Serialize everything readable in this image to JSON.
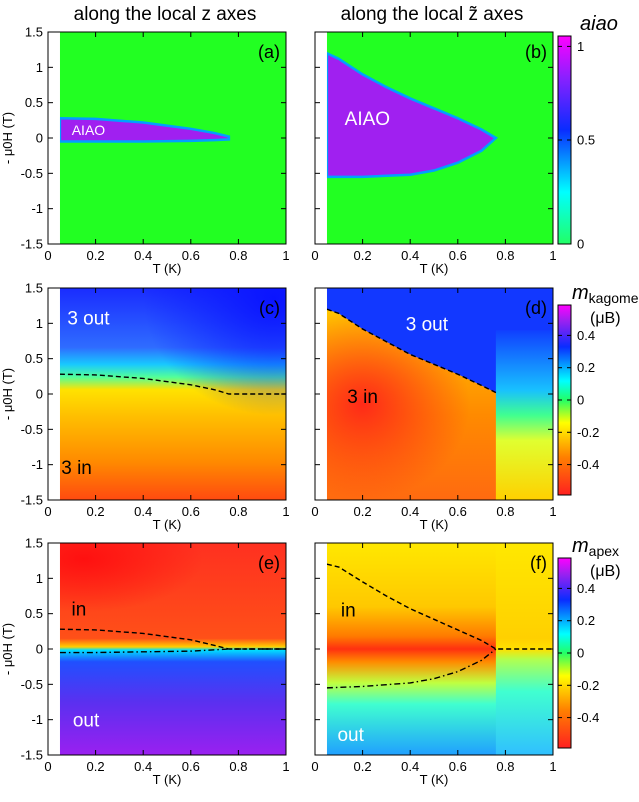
{
  "headers": {
    "left": "along the local z axes",
    "right": "along the local z̃ axes"
  },
  "colorbars": [
    {
      "title": "aiao",
      "unit": "",
      "ticks": [
        "1",
        "0.5",
        "0"
      ]
    },
    {
      "title": "m",
      "title_sub": "kagome",
      "unit": "(μB)",
      "ticks": [
        "0.4",
        "0.2",
        "0",
        "-0.2",
        "-0.4"
      ]
    },
    {
      "title": "m",
      "title_sub": "apex",
      "unit": "(μB)",
      "ticks": [
        "0.4",
        "0.2",
        "0",
        "-0.2",
        "-0.4"
      ]
    }
  ],
  "colors": {
    "aiao_on": "#a020f0",
    "aiao_off": "#22ff22",
    "boundary": "#0000ff",
    "scale": [
      "#ff2020",
      "#ff8000",
      "#ffff00",
      "#00ff80",
      "#00ffff",
      "#0000ff",
      "#ff00ff"
    ]
  },
  "chart_data": [
    {
      "panel": "(a)",
      "type": "heatmap",
      "xlabel": "T (K)",
      "ylabel": "- μ0H (T)",
      "xlim": [
        0,
        1
      ],
      "ylim": [
        -1.5,
        1.5
      ],
      "xticks": [
        "0",
        "0.2",
        "0.4",
        "0.6",
        "0.8",
        "1"
      ],
      "yticks": [
        "1.5",
        "1",
        "0.5",
        "0",
        "-0.5",
        "-1",
        "-1.5"
      ],
      "background": "aiao = 0",
      "regions": [
        {
          "label": "AIAO",
          "value": 1,
          "upper": {
            "x": [
              0.05,
              0.2,
              0.4,
              0.6,
              0.7,
              0.76
            ],
            "y": [
              0.28,
              0.27,
              0.22,
              0.13,
              0.07,
              0.02
            ]
          },
          "lower": {
            "x": [
              0.05,
              0.2,
              0.4,
              0.6,
              0.7,
              0.76
            ],
            "y": [
              -0.05,
              -0.05,
              -0.05,
              -0.04,
              -0.03,
              -0.02
            ]
          }
        }
      ]
    },
    {
      "panel": "(b)",
      "type": "heatmap",
      "xlabel": "T (K)",
      "ylabel": "",
      "xlim": [
        0,
        1
      ],
      "ylim": [
        -1.5,
        1.5
      ],
      "xticks": [
        "0",
        "0.2",
        "0.4",
        "0.6",
        "0.8",
        "1"
      ],
      "yticks": [],
      "background": "aiao = 0",
      "regions": [
        {
          "label": "AIAO",
          "value": 1,
          "upper": {
            "x": [
              0.05,
              0.1,
              0.2,
              0.3,
              0.4,
              0.5,
              0.6,
              0.7,
              0.76
            ],
            "y": [
              1.2,
              1.12,
              0.9,
              0.72,
              0.56,
              0.42,
              0.28,
              0.12,
              0.0
            ]
          },
          "lower": {
            "x": [
              0.05,
              0.2,
              0.4,
              0.5,
              0.6,
              0.7,
              0.76
            ],
            "y": [
              -0.55,
              -0.55,
              -0.52,
              -0.46,
              -0.35,
              -0.18,
              0.0
            ]
          }
        }
      ]
    },
    {
      "panel": "(c)",
      "type": "heatmap",
      "xlabel": "T (K)",
      "ylabel": "- μ0H (T)",
      "xlim": [
        0,
        1
      ],
      "ylim": [
        -1.5,
        1.5
      ],
      "xticks": [
        "0",
        "0.2",
        "0.4",
        "0.6",
        "0.8",
        "1"
      ],
      "yticks": [
        "1.5",
        "1",
        "0.5",
        "0",
        "-0.5",
        "-1",
        "-1.5"
      ],
      "annotations": [
        "3 out",
        "3 in"
      ],
      "dashed_line": {
        "x": [
          0.05,
          0.2,
          0.4,
          0.6,
          0.7,
          0.76,
          0.85,
          1.0
        ],
        "y": [
          0.28,
          0.27,
          0.22,
          0.13,
          0.06,
          0.0,
          0.0,
          0.0
        ]
      }
    },
    {
      "panel": "(d)",
      "type": "heatmap",
      "xlabel": "T (K)",
      "ylabel": "",
      "xlim": [
        0,
        1
      ],
      "ylim": [
        -1.5,
        1.5
      ],
      "xticks": [
        "0",
        "0.2",
        "0.4",
        "0.6",
        "0.8",
        "1"
      ],
      "yticks": [],
      "annotations": [
        "3 out",
        "3 in"
      ],
      "dashed_line": {
        "x": [
          0.05,
          0.1,
          0.2,
          0.3,
          0.4,
          0.5,
          0.6,
          0.7,
          0.76
        ],
        "y": [
          1.2,
          1.14,
          0.92,
          0.74,
          0.56,
          0.42,
          0.28,
          0.12,
          0.02
        ]
      }
    },
    {
      "panel": "(e)",
      "type": "heatmap",
      "xlabel": "T (K)",
      "ylabel": "- μ0H (T)",
      "xlim": [
        0,
        1
      ],
      "ylim": [
        -1.5,
        1.5
      ],
      "xticks": [
        "0",
        "0.2",
        "0.4",
        "0.6",
        "0.8",
        "1"
      ],
      "yticks": [
        "1.5",
        "1",
        "0.5",
        "0",
        "-0.5",
        "-1",
        "-1.5"
      ],
      "annotations": [
        "in",
        "out"
      ],
      "dashed_line": {
        "x": [
          0.05,
          0.2,
          0.4,
          0.6,
          0.7,
          0.76,
          0.85,
          1.0
        ],
        "y": [
          0.28,
          0.27,
          0.22,
          0.13,
          0.05,
          0.0,
          0.0,
          0.0
        ]
      },
      "dashdot_line": {
        "x": [
          0.05,
          0.2,
          0.4,
          0.6,
          0.76,
          1.0
        ],
        "y": [
          -0.05,
          -0.05,
          -0.04,
          -0.03,
          0.0,
          0.0
        ]
      }
    },
    {
      "panel": "(f)",
      "type": "heatmap",
      "xlabel": "T (K)",
      "ylabel": "",
      "xlim": [
        0,
        1
      ],
      "ylim": [
        -1.5,
        1.5
      ],
      "xticks": [
        "0",
        "0.2",
        "0.4",
        "0.6",
        "0.8",
        "1"
      ],
      "yticks": [],
      "annotations": [
        "in",
        "out"
      ],
      "dashed_line": {
        "x": [
          0.05,
          0.1,
          0.2,
          0.3,
          0.4,
          0.5,
          0.6,
          0.7,
          0.76,
          0.85,
          1.0
        ],
        "y": [
          1.2,
          1.16,
          0.95,
          0.75,
          0.57,
          0.42,
          0.27,
          0.12,
          0.0,
          0.0,
          0.0
        ]
      },
      "dashdot_line": {
        "x": [
          0.05,
          0.2,
          0.4,
          0.5,
          0.6,
          0.7,
          0.76
        ],
        "y": [
          -0.55,
          -0.53,
          -0.48,
          -0.42,
          -0.32,
          -0.16,
          0.0
        ]
      }
    }
  ]
}
